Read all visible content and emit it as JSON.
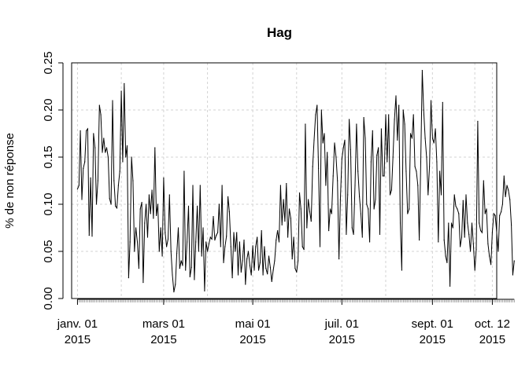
{
  "chart_data": {
    "type": "line",
    "title": "Hag",
    "xlabel": "",
    "ylabel": "% de non réponse",
    "x_range": [
      "2014-12-28",
      "2015-10-15"
    ],
    "ylim": [
      0,
      0.25
    ],
    "y_ticks": [
      0.0,
      0.05,
      0.1,
      0.15,
      0.2,
      0.25
    ],
    "y_tick_labels": [
      "0.00",
      "0.05",
      "0.10",
      "0.15",
      "0.20",
      "0.25"
    ],
    "x_ticks": [
      {
        "date": "2015-01-01",
        "line1": "janv. 01",
        "line2": "2015"
      },
      {
        "date": "2015-03-01",
        "line1": "mars 01",
        "line2": "2015"
      },
      {
        "date": "2015-05-01",
        "line1": "mai 01",
        "line2": "2015"
      },
      {
        "date": "2015-07-01",
        "line1": "juil. 01",
        "line2": "2015"
      },
      {
        "date": "2015-09-01",
        "line1": "sept. 01",
        "line2": "2015"
      },
      {
        "date": "2015-10-12",
        "line1": "oct. 12",
        "line2": "2015"
      }
    ],
    "v_grid_dates": [
      "2015-01-01",
      "2015-01-31",
      "2015-03-01",
      "2015-03-31",
      "2015-05-01",
      "2015-05-31",
      "2015-07-01",
      "2015-07-31",
      "2015-09-01",
      "2015-09-30",
      "2015-10-12"
    ],
    "grid": true,
    "start_date": "2015-01-01",
    "series": [
      {
        "values": [
          0.116,
          0.12,
          0.178,
          0.105,
          0.138,
          0.145,
          0.178,
          0.18,
          0.067,
          0.128,
          0.066,
          0.175,
          0.16,
          0.1,
          0.125,
          0.205,
          0.195,
          0.155,
          0.17,
          0.155,
          0.16,
          0.15,
          0.106,
          0.1,
          0.21,
          0.125,
          0.098,
          0.096,
          0.12,
          0.135,
          0.22,
          0.145,
          0.228,
          0.15,
          0.162,
          0.022,
          0.06,
          0.15,
          0.125,
          0.05,
          0.075,
          0.06,
          0.032,
          0.095,
          0.102,
          0.017,
          0.08,
          0.1,
          0.065,
          0.11,
          0.09,
          0.115,
          0.085,
          0.16,
          0.088,
          0.1,
          0.05,
          0.075,
          0.045,
          0.128,
          0.07,
          0.055,
          0.063,
          0.11,
          0.05,
          0.025,
          0.007,
          0.015,
          0.048,
          0.075,
          0.032,
          0.04,
          0.035,
          0.135,
          0.03,
          0.06,
          0.098,
          0.023,
          0.033,
          0.12,
          0.02,
          0.06,
          0.098,
          0.05,
          0.12,
          0.045,
          0.075,
          0.008,
          0.06,
          0.05,
          0.058,
          0.065,
          0.063,
          0.087,
          0.062,
          0.067,
          0.07,
          0.1,
          0.055,
          0.12,
          0.038,
          0.055,
          0.066,
          0.108,
          0.092,
          0.055,
          0.022,
          0.07,
          0.05,
          0.07,
          0.025,
          0.06,
          0.028,
          0.04,
          0.062,
          0.015,
          0.042,
          0.05,
          0.035,
          0.025,
          0.056,
          0.03,
          0.055,
          0.065,
          0.03,
          0.038,
          0.072,
          0.025,
          0.055,
          0.032,
          0.026,
          0.045,
          0.033,
          0.018,
          0.03,
          0.04,
          0.062,
          0.072,
          0.06,
          0.12,
          0.078,
          0.105,
          0.082,
          0.122,
          0.065,
          0.095,
          0.085,
          0.042,
          0.065,
          0.032,
          0.028,
          0.04,
          0.112,
          0.095,
          0.055,
          0.052,
          0.185,
          0.075,
          0.105,
          0.092,
          0.082,
          0.14,
          0.168,
          0.195,
          0.205,
          0.138,
          0.055,
          0.2,
          0.165,
          0.175,
          0.12,
          0.155,
          0.072,
          0.095,
          0.09,
          0.13,
          0.165,
          0.15,
          0.125,
          0.042,
          0.105,
          0.148,
          0.16,
          0.168,
          0.068,
          0.11,
          0.19,
          0.158,
          0.075,
          0.068,
          0.12,
          0.185,
          0.135,
          0.108,
          0.09,
          0.065,
          0.192,
          0.17,
          0.1,
          0.095,
          0.06,
          0.145,
          0.178,
          0.095,
          0.105,
          0.152,
          0.16,
          0.068,
          0.18,
          0.13,
          0.13,
          0.195,
          0.145,
          0.195,
          0.11,
          0.115,
          0.15,
          0.19,
          0.215,
          0.168,
          0.205,
          0.08,
          0.03,
          0.2,
          0.185,
          0.135,
          0.09,
          0.095,
          0.175,
          0.17,
          0.195,
          0.14,
          0.135,
          0.12,
          0.062,
          0.145,
          0.242,
          0.2,
          0.17,
          0.15,
          0.11,
          0.14,
          0.21,
          0.17,
          0.165,
          0.18,
          0.145,
          0.06,
          0.135,
          0.11,
          0.208,
          0.062,
          0.045,
          0.038,
          0.08,
          0.013,
          0.08,
          0.075,
          0.11,
          0.098,
          0.095,
          0.09,
          0.055,
          0.065,
          0.104,
          0.065,
          0.11,
          0.08,
          0.068,
          0.05,
          0.08,
          0.058,
          0.03,
          0.052,
          0.188,
          0.08,
          0.072,
          0.07,
          0.125,
          0.09,
          0.095,
          0.058,
          0.045,
          0.036,
          0.07,
          0.09,
          0.088,
          0.07,
          0.05,
          0.088,
          0.092,
          0.1,
          0.13,
          0.108,
          0.12,
          0.115,
          0.105,
          0.078,
          0.025,
          0.04
        ]
      }
    ]
  }
}
